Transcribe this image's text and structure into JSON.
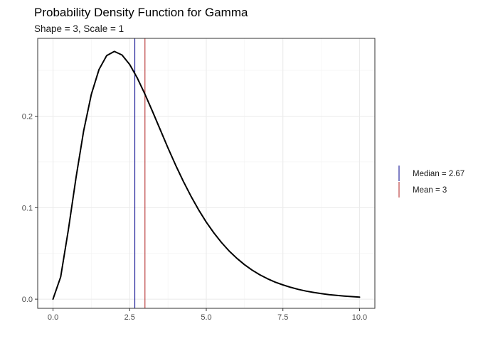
{
  "chart_data": {
    "type": "line",
    "title": "Probability Density Function for Gamma",
    "subtitle": "Shape = 3, Scale = 1",
    "xlabel": "",
    "ylabel": "",
    "xlim": [
      -0.5,
      10.5
    ],
    "ylim": [
      -0.01,
      0.285
    ],
    "x_ticks": [
      0,
      2.5,
      5,
      7.5,
      10
    ],
    "x_tick_labels": [
      "0.0",
      "2.5",
      "5.0",
      "7.5",
      "10.0"
    ],
    "y_ticks": [
      0,
      0.1,
      0.2
    ],
    "y_tick_labels": [
      "0.0",
      "0.1",
      "0.2"
    ],
    "grid": true,
    "legend_position": "right",
    "series": [
      {
        "color": "#000000",
        "x": [
          0,
          0.25,
          0.5,
          0.75,
          1,
          1.25,
          1.5,
          1.75,
          2,
          2.25,
          2.5,
          2.75,
          3,
          3.25,
          3.5,
          3.75,
          4,
          4.25,
          4.5,
          4.75,
          5,
          5.25,
          5.5,
          5.75,
          6,
          6.25,
          6.5,
          6.75,
          7,
          7.25,
          7.5,
          7.75,
          8,
          8.25,
          8.5,
          8.75,
          9,
          9.25,
          9.5,
          9.75,
          10
        ],
        "y": [
          0,
          0.0243,
          0.0758,
          0.1329,
          0.1839,
          0.2238,
          0.251,
          0.2662,
          0.2707,
          0.2668,
          0.2565,
          0.2417,
          0.224,
          0.2048,
          0.185,
          0.1654,
          0.1465,
          0.1288,
          0.1125,
          0.0977,
          0.0842,
          0.0723,
          0.0618,
          0.0525,
          0.0446,
          0.0376,
          0.0317,
          0.0266,
          0.0223,
          0.0186,
          0.0156,
          0.013,
          0.0107,
          0.0089,
          0.0074,
          0.0061,
          0.005,
          0.0041,
          0.0034,
          0.0028,
          0.0023
        ]
      }
    ],
    "vlines": [
      {
        "name": "Median = 2.67",
        "x": 2.67,
        "color": "#00008b"
      },
      {
        "name": "Mean = 3",
        "x": 3,
        "color": "#b22222"
      }
    ]
  }
}
